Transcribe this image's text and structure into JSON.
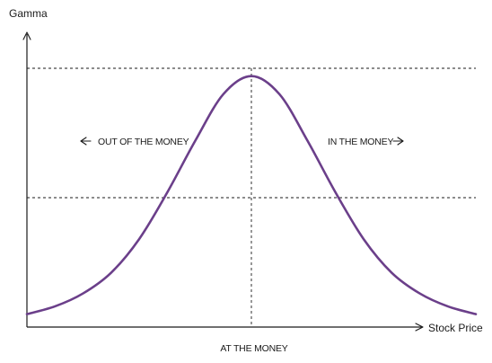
{
  "chart_data": {
    "type": "line",
    "ylabel": "Gamma",
    "xlabel": "Stock Price",
    "annotations": {
      "left_region": "OUT OF THE MONEY",
      "right_region": "IN THE MONEY",
      "center": "AT THE MONEY"
    },
    "series": [
      {
        "color": "#6b3f8a",
        "x": [
          -4.0,
          -3.5,
          -3.0,
          -2.5,
          -2.0,
          -1.5,
          -1.0,
          -0.5,
          0.0,
          0.5,
          1.0,
          1.5,
          2.0,
          2.5,
          3.0,
          3.5,
          4.0
        ],
        "y": [
          0.05,
          0.08,
          0.13,
          0.21,
          0.34,
          0.52,
          0.72,
          0.9,
          0.97,
          0.9,
          0.72,
          0.52,
          0.34,
          0.21,
          0.13,
          0.08,
          0.05
        ]
      }
    ],
    "reference_lines": {
      "horizontal": [
        1.0,
        0.5
      ],
      "vertical": [
        0.0
      ]
    },
    "xlim": [
      -4.0,
      4.0
    ],
    "ylim": [
      0.0,
      1.0
    ],
    "grid": false,
    "axis_ticks": false
  }
}
